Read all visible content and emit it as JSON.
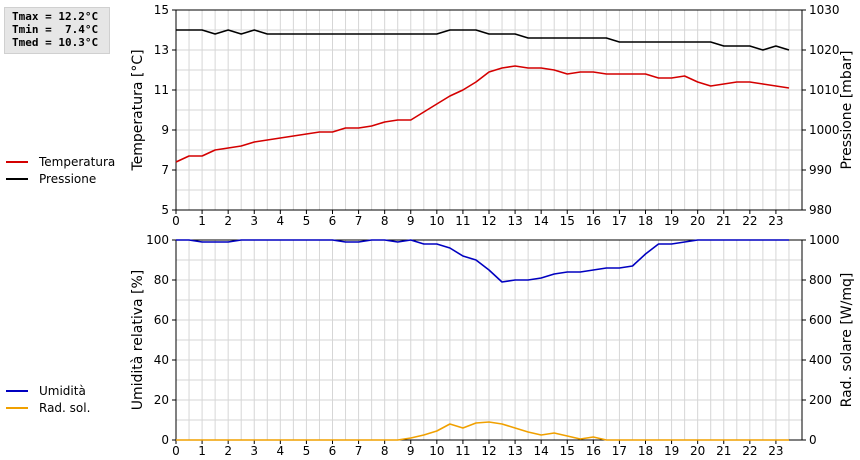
{
  "stats": {
    "tmax": "Tmax = 12.2°C",
    "tmin": "Tmin =  7.4°C",
    "tmed": "Tmed = 10.3°C"
  },
  "legend_top": [
    {
      "label": "Temperatura",
      "color": "#d40000"
    },
    {
      "label": "Pressione",
      "color": "#000000"
    }
  ],
  "legend_bottom": [
    {
      "label": "Umidità",
      "color": "#0000c0"
    },
    {
      "label": "Rad. sol.",
      "color": "#f0a000"
    }
  ],
  "chart_data": [
    {
      "type": "line",
      "xlabel": "",
      "ylabel": "Temperatura [°C]",
      "y2label": "Pressione [mbar]",
      "xlim": [
        0,
        24
      ],
      "xticks": [
        "0",
        "1",
        "2",
        "3",
        "4",
        "5",
        "6",
        "7",
        "8",
        "9",
        "10",
        "11",
        "12",
        "13",
        "14",
        "15",
        "16",
        "17",
        "18",
        "19",
        "20",
        "21",
        "22",
        "23"
      ],
      "ylim": [
        5,
        15
      ],
      "yticks": [
        "5",
        "7",
        "9",
        "11",
        "13",
        "15"
      ],
      "y2lim": [
        980,
        1030
      ],
      "y2ticks": [
        "980",
        "990",
        "1000",
        "1010",
        "1020",
        "1030"
      ],
      "grid": true,
      "series": [
        {
          "name": "Temperatura",
          "axis": "left",
          "color": "#d40000",
          "x": [
            0,
            0.5,
            1,
            1.5,
            2,
            2.5,
            3,
            3.5,
            4,
            4.5,
            5,
            5.5,
            6,
            6.5,
            7,
            7.5,
            8,
            8.5,
            9,
            9.5,
            10,
            10.5,
            11,
            11.5,
            12,
            12.5,
            13,
            13.5,
            14,
            14.5,
            15,
            15.5,
            16,
            16.5,
            17,
            17.5,
            18,
            18.5,
            19,
            19.5,
            20,
            20.5,
            21,
            21.5,
            22,
            22.5,
            23,
            23.5
          ],
          "y": [
            7.4,
            7.7,
            7.7,
            8.0,
            8.1,
            8.2,
            8.4,
            8.5,
            8.6,
            8.7,
            8.8,
            8.9,
            8.9,
            9.1,
            9.1,
            9.2,
            9.4,
            9.5,
            9.5,
            9.9,
            10.3,
            10.7,
            11.0,
            11.4,
            11.9,
            12.1,
            12.2,
            12.1,
            12.1,
            12.0,
            11.8,
            11.9,
            11.9,
            11.8,
            11.8,
            11.8,
            11.8,
            11.6,
            11.6,
            11.7,
            11.4,
            11.2,
            11.3,
            11.4,
            11.4,
            11.3,
            11.2,
            11.1
          ]
        },
        {
          "name": "Pressione",
          "axis": "right",
          "color": "#000000",
          "x": [
            0,
            0.5,
            1,
            1.5,
            2,
            2.5,
            3,
            3.5,
            4,
            4.5,
            5,
            5.5,
            6,
            6.5,
            7,
            7.5,
            8,
            8.5,
            9,
            9.5,
            10,
            10.5,
            11,
            11.5,
            12,
            12.5,
            13,
            13.5,
            14,
            14.5,
            15,
            15.5,
            16,
            16.5,
            17,
            17.5,
            18,
            18.5,
            19,
            19.5,
            20,
            20.5,
            21,
            21.5,
            22,
            22.5,
            23,
            23.5
          ],
          "y": [
            1025,
            1025,
            1025,
            1024,
            1025,
            1024,
            1025,
            1024,
            1024,
            1024,
            1024,
            1024,
            1024,
            1024,
            1024,
            1024,
            1024,
            1024,
            1024,
            1024,
            1024,
            1025,
            1025,
            1025,
            1024,
            1024,
            1024,
            1023,
            1023,
            1023,
            1023,
            1023,
            1023,
            1023,
            1022,
            1022,
            1022,
            1022,
            1022,
            1022,
            1022,
            1022,
            1021,
            1021,
            1021,
            1020,
            1021,
            1020
          ]
        }
      ]
    },
    {
      "type": "line",
      "xlabel": "",
      "ylabel": "Umidità relativa [%]",
      "y2label": "Rad. solare [W/mq]",
      "xlim": [
        0,
        24
      ],
      "xticks": [
        "0",
        "1",
        "2",
        "3",
        "4",
        "5",
        "6",
        "7",
        "8",
        "9",
        "10",
        "11",
        "12",
        "13",
        "14",
        "15",
        "16",
        "17",
        "18",
        "19",
        "20",
        "21",
        "22",
        "23"
      ],
      "ylim": [
        0,
        100
      ],
      "yticks": [
        "0",
        "20",
        "40",
        "60",
        "80",
        "100"
      ],
      "y2lim": [
        0,
        1000
      ],
      "y2ticks": [
        "0",
        "200",
        "400",
        "600",
        "800",
        "1000"
      ],
      "grid": true,
      "series": [
        {
          "name": "Umidità",
          "axis": "left",
          "color": "#0000c0",
          "x": [
            0,
            0.5,
            1,
            1.5,
            2,
            2.5,
            3,
            3.5,
            4,
            4.5,
            5,
            5.5,
            6,
            6.5,
            7,
            7.5,
            8,
            8.5,
            9,
            9.5,
            10,
            10.5,
            11,
            11.5,
            12,
            12.5,
            13,
            13.5,
            14,
            14.5,
            15,
            15.5,
            16,
            16.5,
            17,
            17.5,
            18,
            18.5,
            19,
            19.5,
            20,
            20.5,
            21,
            21.5,
            22,
            22.5,
            23,
            23.5
          ],
          "y": [
            100,
            100,
            99,
            99,
            99,
            100,
            100,
            100,
            100,
            100,
            100,
            100,
            100,
            99,
            99,
            100,
            100,
            99,
            100,
            98,
            98,
            96,
            92,
            90,
            85,
            79,
            80,
            80,
            81,
            83,
            84,
            84,
            85,
            86,
            86,
            87,
            93,
            98,
            98,
            99,
            100,
            100,
            100,
            100,
            100,
            100,
            100,
            100
          ]
        },
        {
          "name": "Rad. sol.",
          "axis": "right",
          "color": "#f0a000",
          "x": [
            0,
            0.5,
            1,
            1.5,
            2,
            2.5,
            3,
            3.5,
            4,
            4.5,
            5,
            5.5,
            6,
            6.5,
            7,
            7.5,
            8,
            8.5,
            9,
            9.5,
            10,
            10.5,
            11,
            11.5,
            12,
            12.5,
            13,
            13.5,
            14,
            14.5,
            15,
            15.5,
            16,
            16.5,
            17,
            17.5,
            18,
            18.5,
            19,
            19.5,
            20,
            20.5,
            21,
            21.5,
            22,
            22.5,
            23,
            23.5
          ],
          "y": [
            0,
            0,
            0,
            0,
            0,
            0,
            0,
            0,
            0,
            0,
            0,
            0,
            0,
            0,
            0,
            0,
            0,
            0,
            10,
            25,
            45,
            80,
            60,
            85,
            90,
            80,
            60,
            40,
            25,
            35,
            20,
            5,
            15,
            0,
            0,
            0,
            0,
            0,
            0,
            0,
            0,
            0,
            0,
            0,
            0,
            0,
            0,
            0
          ]
        }
      ]
    }
  ]
}
